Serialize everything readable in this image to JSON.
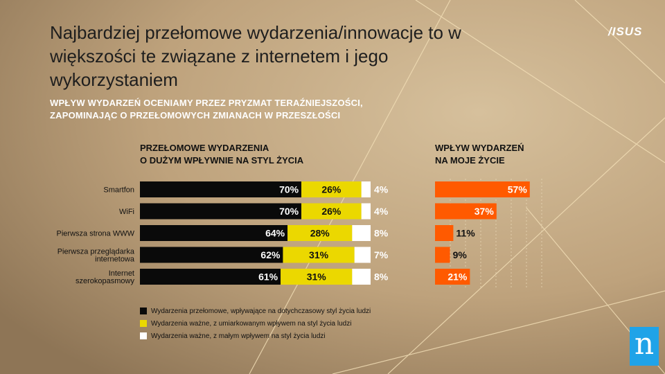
{
  "title": "Najbardziej przełomowe wydarzenia/innowacje to w większości te związane z internetem i jego wykorzystaniem",
  "subtitle": "WPŁYW WYDARZEŃ OCENIAMY PRZEZ PRYZMAT TERAŹNIEJSZOŚCI, ZAPOMINAJĄC O PRZEŁOMOWYCH ZMIANACH W PRZESZŁOŚCI",
  "brand": "/ISUS",
  "corner_logo": "n",
  "colors": {
    "black": "#0a0a0a",
    "yellow": "#ebd800",
    "white": "#ffffff",
    "orange": "#ff5a00"
  },
  "chart_data": [
    {
      "type": "bar",
      "stacked": true,
      "orientation": "horizontal",
      "title_line1": "PRZEŁOMOWE WYDARZENIA",
      "title_line2": "O DUŻYM WPŁYWNIE NA STYL ŻYCIA",
      "categories": [
        "Smartfon",
        "WiFi",
        "Pierwsza strona WWW",
        "Pierwsza przeglądarka internetowa",
        "Internet szerokopasmowy"
      ],
      "category_lines": [
        [
          "Smartfon"
        ],
        [
          "WiFi"
        ],
        [
          "Pierwsza strona WWW"
        ],
        [
          "Pierwsza przeglądarka",
          "internetowa"
        ],
        [
          "Internet",
          "szerokopasmowy"
        ]
      ],
      "series": [
        {
          "name": "Wydarzenia przełomowe, wpływające na dotychczasowy styl życia ludzi",
          "values": [
            70,
            70,
            64,
            62,
            61
          ],
          "labels": [
            "70%",
            "70%",
            "64%",
            "62%",
            "61%"
          ],
          "color": "#0a0a0a"
        },
        {
          "name": "Wydarzenia ważne, z umiarkowanym wpływem na styl życia ludzi",
          "values": [
            26,
            26,
            28,
            31,
            31
          ],
          "labels": [
            "26%",
            "26%",
            "28%",
            "31%",
            "31%"
          ],
          "color": "#ebd800"
        },
        {
          "name": "Wydarzenia ważne, z małym wpływem na styl życia ludzi",
          "values": [
            4,
            4,
            8,
            7,
            8
          ],
          "labels": [
            "4%",
            "4%",
            "8%",
            "7%",
            "8%"
          ],
          "color": "#ffffff"
        }
      ],
      "xlim": [
        0,
        100
      ]
    },
    {
      "type": "bar",
      "orientation": "horizontal",
      "title_line1": "WPŁYW WYDARZEŃ",
      "title_line2": "NA MOJE ŻYCIE",
      "categories": [
        "Smartfon",
        "WiFi",
        "Pierwsza strona WWW",
        "Pierwsza przeglądarka internetowa",
        "Internet szerokopasmowy"
      ],
      "values": [
        57,
        37,
        11,
        9,
        21
      ],
      "labels": [
        "57%",
        "37%",
        "11%",
        "9%",
        "21%"
      ],
      "color": "#ff5a00",
      "grid": true
    }
  ]
}
